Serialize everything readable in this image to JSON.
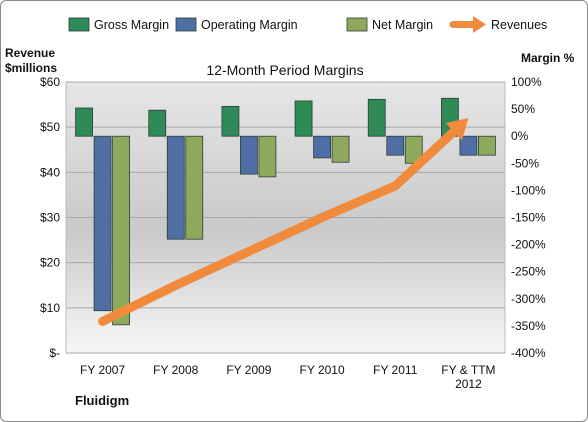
{
  "chart_data": {
    "type": "bar",
    "title": "12-Month Period Margins",
    "company": "Fluidigm",
    "left_axis_label_line1": "Revenue",
    "left_axis_label_line2": "$millions",
    "right_axis_label": "Margin %",
    "categories": [
      "FY 2007",
      "FY 2008",
      "FY 2009",
      "FY 2010",
      "FY 2011",
      "FY & TTM 2012"
    ],
    "x_tick_labels": [
      [
        "FY 2007"
      ],
      [
        "FY 2008"
      ],
      [
        "FY 2009"
      ],
      [
        "FY 2010"
      ],
      [
        "FY 2011"
      ],
      [
        "FY & TTM",
        "2012"
      ]
    ],
    "series": [
      {
        "name": "Gross Margin",
        "axis": "right",
        "kind": "bar",
        "color": "#2e8b57",
        "values": [
          52,
          48,
          55,
          65,
          68,
          70
        ]
      },
      {
        "name": "Operating Margin",
        "axis": "right",
        "kind": "bar",
        "color": "#4f6ea3",
        "values": [
          -322,
          -190,
          -70,
          -40,
          -35,
          -35
        ]
      },
      {
        "name": "Net Margin",
        "axis": "right",
        "kind": "bar",
        "color": "#8fa95c",
        "values": [
          -348,
          -190,
          -75,
          -48,
          -50,
          -35
        ]
      },
      {
        "name": "Revenues",
        "axis": "left",
        "kind": "line",
        "color": "#f08a3c",
        "values": [
          7,
          15,
          22.5,
          30,
          37,
          52
        ]
      }
    ],
    "left_axis": {
      "min": 0,
      "max": 60,
      "ticks": [
        0,
        10,
        20,
        30,
        40,
        50,
        60
      ],
      "tick_labels": [
        "$-",
        "$10",
        "$20",
        "$30",
        "$40",
        "$50",
        "$60"
      ]
    },
    "right_axis": {
      "min": -400,
      "max": 100,
      "ticks": [
        -400,
        -350,
        -300,
        -250,
        -200,
        -150,
        -100,
        -50,
        0,
        50,
        100
      ],
      "tick_labels": [
        "-400%",
        "-350%",
        "-300%",
        "-250%",
        "-200%",
        "-150%",
        "-100%",
        "-50%",
        "0%",
        "50%",
        "100%"
      ]
    },
    "legend_position": "top",
    "grid": true
  }
}
